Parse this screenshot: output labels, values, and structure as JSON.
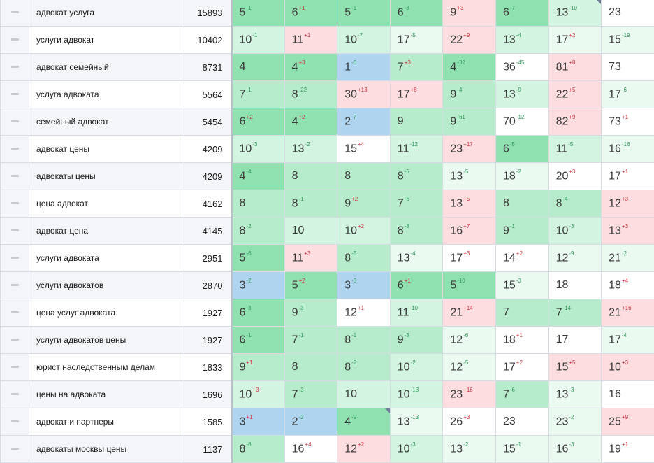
{
  "rows": [
    {
      "keyword": "адвокат услуга",
      "volume": "15893",
      "cells": [
        {
          "v": "5",
          "d": "1",
          "dir": "up",
          "c": "c1"
        },
        {
          "v": "6",
          "d": "1",
          "dir": "dn",
          "c": "c1"
        },
        {
          "v": "5",
          "d": "1",
          "dir": "up",
          "c": "c1"
        },
        {
          "v": "6",
          "d": "3",
          "dir": "up",
          "c": "c1"
        },
        {
          "v": "9",
          "d": "3",
          "dir": "dn",
          "c": "cr"
        },
        {
          "v": "6",
          "d": "7",
          "dir": "up",
          "c": "c1"
        },
        {
          "v": "13",
          "d": "10",
          "dir": "up",
          "c": "c3",
          "flag": true
        },
        {
          "v": "23",
          "d": "",
          "dir": "",
          "c": "c5"
        }
      ]
    },
    {
      "keyword": "услуги адвокат",
      "volume": "10402",
      "cells": [
        {
          "v": "10",
          "d": "1",
          "dir": "up",
          "c": "c3"
        },
        {
          "v": "11",
          "d": "1",
          "dir": "dn",
          "c": "cr"
        },
        {
          "v": "10",
          "d": "7",
          "dir": "up",
          "c": "c3"
        },
        {
          "v": "17",
          "d": "5",
          "dir": "up",
          "c": "c4"
        },
        {
          "v": "22",
          "d": "9",
          "dir": "dn",
          "c": "cr"
        },
        {
          "v": "13",
          "d": "4",
          "dir": "up",
          "c": "c3"
        },
        {
          "v": "17",
          "d": "2",
          "dir": "dn",
          "c": "c4"
        },
        {
          "v": "15",
          "d": "19",
          "dir": "up",
          "c": "c4"
        }
      ]
    },
    {
      "keyword": "адвокат семейный",
      "volume": "8731",
      "cells": [
        {
          "v": "4",
          "d": "",
          "dir": "",
          "c": "c1"
        },
        {
          "v": "4",
          "d": "3",
          "dir": "dn",
          "c": "c1"
        },
        {
          "v": "1",
          "d": "6",
          "dir": "up",
          "c": "cb"
        },
        {
          "v": "7",
          "d": "3",
          "dir": "dn",
          "c": "c2"
        },
        {
          "v": "4",
          "d": "32",
          "dir": "up",
          "c": "c1"
        },
        {
          "v": "36",
          "d": "45",
          "dir": "up",
          "c": "c5"
        },
        {
          "v": "81",
          "d": "8",
          "dir": "dn",
          "c": "cr"
        },
        {
          "v": "73",
          "d": "",
          "dir": "",
          "c": "c5"
        }
      ]
    },
    {
      "keyword": "услуга адвоката",
      "volume": "5564",
      "cells": [
        {
          "v": "7",
          "d": "1",
          "dir": "up",
          "c": "c2"
        },
        {
          "v": "8",
          "d": "22",
          "dir": "up",
          "c": "c2"
        },
        {
          "v": "30",
          "d": "13",
          "dir": "dn",
          "c": "cr"
        },
        {
          "v": "17",
          "d": "8",
          "dir": "dn",
          "c": "cr"
        },
        {
          "v": "9",
          "d": "4",
          "dir": "up",
          "c": "c2"
        },
        {
          "v": "13",
          "d": "9",
          "dir": "up",
          "c": "c3"
        },
        {
          "v": "22",
          "d": "5",
          "dir": "dn",
          "c": "cr"
        },
        {
          "v": "17",
          "d": "6",
          "dir": "up",
          "c": "c4"
        }
      ]
    },
    {
      "keyword": "семейный адвокат",
      "volume": "5454",
      "cells": [
        {
          "v": "6",
          "d": "2",
          "dir": "dn",
          "c": "c1"
        },
        {
          "v": "4",
          "d": "2",
          "dir": "dn",
          "c": "c1"
        },
        {
          "v": "2",
          "d": "7",
          "dir": "up",
          "c": "cb"
        },
        {
          "v": "9",
          "d": "",
          "dir": "",
          "c": "c2"
        },
        {
          "v": "9",
          "d": "61",
          "dir": "up",
          "c": "c2"
        },
        {
          "v": "70",
          "d": "12",
          "dir": "up",
          "c": "c5"
        },
        {
          "v": "82",
          "d": "9",
          "dir": "dn",
          "c": "cr"
        },
        {
          "v": "73",
          "d": "1",
          "dir": "dn",
          "c": "c5"
        }
      ]
    },
    {
      "keyword": "адвокат цены",
      "volume": "4209",
      "cells": [
        {
          "v": "10",
          "d": "3",
          "dir": "up",
          "c": "c3"
        },
        {
          "v": "13",
          "d": "2",
          "dir": "up",
          "c": "c3"
        },
        {
          "v": "15",
          "d": "4",
          "dir": "dn",
          "c": "c5"
        },
        {
          "v": "11",
          "d": "12",
          "dir": "up",
          "c": "c3"
        },
        {
          "v": "23",
          "d": "17",
          "dir": "dn",
          "c": "cr"
        },
        {
          "v": "6",
          "d": "5",
          "dir": "up",
          "c": "c1"
        },
        {
          "v": "11",
          "d": "5",
          "dir": "up",
          "c": "c3"
        },
        {
          "v": "16",
          "d": "16",
          "dir": "up",
          "c": "c4"
        }
      ]
    },
    {
      "keyword": "адвокаты цены",
      "volume": "4209",
      "cells": [
        {
          "v": "4",
          "d": "4",
          "dir": "up",
          "c": "c1"
        },
        {
          "v": "8",
          "d": "",
          "dir": "",
          "c": "c2"
        },
        {
          "v": "8",
          "d": "",
          "dir": "",
          "c": "c2"
        },
        {
          "v": "8",
          "d": "5",
          "dir": "up",
          "c": "c2"
        },
        {
          "v": "13",
          "d": "5",
          "dir": "up",
          "c": "c4"
        },
        {
          "v": "18",
          "d": "2",
          "dir": "up",
          "c": "c4"
        },
        {
          "v": "20",
          "d": "3",
          "dir": "dn",
          "c": "c5"
        },
        {
          "v": "17",
          "d": "1",
          "dir": "dn",
          "c": "c5"
        }
      ]
    },
    {
      "keyword": "цена адвокат",
      "volume": "4162",
      "cells": [
        {
          "v": "8",
          "d": "",
          "dir": "",
          "c": "c2"
        },
        {
          "v": "8",
          "d": "1",
          "dir": "up",
          "c": "c2"
        },
        {
          "v": "9",
          "d": "2",
          "dir": "dn",
          "c": "c2"
        },
        {
          "v": "7",
          "d": "6",
          "dir": "up",
          "c": "c2"
        },
        {
          "v": "13",
          "d": "5",
          "dir": "dn",
          "c": "cr"
        },
        {
          "v": "8",
          "d": "",
          "dir": "",
          "c": "c2"
        },
        {
          "v": "8",
          "d": "4",
          "dir": "up",
          "c": "c2"
        },
        {
          "v": "12",
          "d": "3",
          "dir": "dn",
          "c": "cr"
        }
      ]
    },
    {
      "keyword": "адвокат цена",
      "volume": "4145",
      "cells": [
        {
          "v": "8",
          "d": "2",
          "dir": "up",
          "c": "c2"
        },
        {
          "v": "10",
          "d": "",
          "dir": "",
          "c": "c3"
        },
        {
          "v": "10",
          "d": "2",
          "dir": "dn",
          "c": "c3"
        },
        {
          "v": "8",
          "d": "8",
          "dir": "up",
          "c": "c2"
        },
        {
          "v": "16",
          "d": "7",
          "dir": "dn",
          "c": "cr"
        },
        {
          "v": "9",
          "d": "1",
          "dir": "up",
          "c": "c2"
        },
        {
          "v": "10",
          "d": "3",
          "dir": "up",
          "c": "c3"
        },
        {
          "v": "13",
          "d": "3",
          "dir": "dn",
          "c": "cr"
        }
      ]
    },
    {
      "keyword": "услуги адвоката",
      "volume": "2951",
      "cells": [
        {
          "v": "5",
          "d": "6",
          "dir": "up",
          "c": "c1"
        },
        {
          "v": "11",
          "d": "3",
          "dir": "dn",
          "c": "cr"
        },
        {
          "v": "8",
          "d": "5",
          "dir": "up",
          "c": "c2"
        },
        {
          "v": "13",
          "d": "4",
          "dir": "up",
          "c": "c4"
        },
        {
          "v": "17",
          "d": "3",
          "dir": "dn",
          "c": "c5"
        },
        {
          "v": "14",
          "d": "2",
          "dir": "dn",
          "c": "c5"
        },
        {
          "v": "12",
          "d": "9",
          "dir": "up",
          "c": "c4"
        },
        {
          "v": "21",
          "d": "2",
          "dir": "up",
          "c": "c4"
        }
      ]
    },
    {
      "keyword": "услуги адвокатов",
      "volume": "2870",
      "cells": [
        {
          "v": "3",
          "d": "2",
          "dir": "up",
          "c": "cb"
        },
        {
          "v": "5",
          "d": "2",
          "dir": "dn",
          "c": "c1"
        },
        {
          "v": "3",
          "d": "3",
          "dir": "up",
          "c": "cb"
        },
        {
          "v": "6",
          "d": "1",
          "dir": "dn",
          "c": "c1"
        },
        {
          "v": "5",
          "d": "10",
          "dir": "up",
          "c": "c1"
        },
        {
          "v": "15",
          "d": "3",
          "dir": "up",
          "c": "c4"
        },
        {
          "v": "18",
          "d": "",
          "dir": "",
          "c": "c5"
        },
        {
          "v": "18",
          "d": "4",
          "dir": "dn",
          "c": "c5"
        }
      ]
    },
    {
      "keyword": "цена услуг адвоката",
      "volume": "1927",
      "cells": [
        {
          "v": "6",
          "d": "3",
          "dir": "up",
          "c": "c1"
        },
        {
          "v": "9",
          "d": "3",
          "dir": "up",
          "c": "c2"
        },
        {
          "v": "12",
          "d": "1",
          "dir": "dn",
          "c": "c5"
        },
        {
          "v": "11",
          "d": "10",
          "dir": "up",
          "c": "c3"
        },
        {
          "v": "21",
          "d": "14",
          "dir": "dn",
          "c": "cr"
        },
        {
          "v": "7",
          "d": "",
          "dir": "",
          "c": "c2"
        },
        {
          "v": "7",
          "d": "14",
          "dir": "up",
          "c": "c2"
        },
        {
          "v": "21",
          "d": "16",
          "dir": "dn",
          "c": "cr"
        }
      ]
    },
    {
      "keyword": "услуги адвокатов цены",
      "volume": "1927",
      "cells": [
        {
          "v": "6",
          "d": "1",
          "dir": "up",
          "c": "c1"
        },
        {
          "v": "7",
          "d": "1",
          "dir": "up",
          "c": "c2"
        },
        {
          "v": "8",
          "d": "1",
          "dir": "up",
          "c": "c2"
        },
        {
          "v": "9",
          "d": "3",
          "dir": "up",
          "c": "c2"
        },
        {
          "v": "12",
          "d": "6",
          "dir": "up",
          "c": "c4"
        },
        {
          "v": "18",
          "d": "1",
          "dir": "dn",
          "c": "c5"
        },
        {
          "v": "17",
          "d": "",
          "dir": "",
          "c": "c5"
        },
        {
          "v": "17",
          "d": "4",
          "dir": "up",
          "c": "c4"
        }
      ]
    },
    {
      "keyword": "юрист наследственным делам",
      "volume": "1833",
      "cells": [
        {
          "v": "9",
          "d": "1",
          "dir": "dn",
          "c": "c2"
        },
        {
          "v": "8",
          "d": "",
          "dir": "",
          "c": "c2"
        },
        {
          "v": "8",
          "d": "2",
          "dir": "up",
          "c": "c2"
        },
        {
          "v": "10",
          "d": "2",
          "dir": "up",
          "c": "c3"
        },
        {
          "v": "12",
          "d": "5",
          "dir": "up",
          "c": "c4"
        },
        {
          "v": "17",
          "d": "2",
          "dir": "dn",
          "c": "c5"
        },
        {
          "v": "15",
          "d": "5",
          "dir": "dn",
          "c": "cr"
        },
        {
          "v": "10",
          "d": "3",
          "dir": "dn",
          "c": "cr"
        }
      ]
    },
    {
      "keyword": "цены на адвоката",
      "volume": "1696",
      "cells": [
        {
          "v": "10",
          "d": "3",
          "dir": "dn",
          "c": "c3"
        },
        {
          "v": "7",
          "d": "3",
          "dir": "up",
          "c": "c2"
        },
        {
          "v": "10",
          "d": "",
          "dir": "",
          "c": "c3"
        },
        {
          "v": "10",
          "d": "13",
          "dir": "up",
          "c": "c3"
        },
        {
          "v": "23",
          "d": "16",
          "dir": "dn",
          "c": "cr"
        },
        {
          "v": "7",
          "d": "6",
          "dir": "up",
          "c": "c2"
        },
        {
          "v": "13",
          "d": "3",
          "dir": "up",
          "c": "c4"
        },
        {
          "v": "16",
          "d": "",
          "dir": "",
          "c": "c5"
        }
      ]
    },
    {
      "keyword": "адвокат и партнеры",
      "volume": "1585",
      "cells": [
        {
          "v": "3",
          "d": "1",
          "dir": "dn",
          "c": "cb"
        },
        {
          "v": "2",
          "d": "2",
          "dir": "up",
          "c": "cb"
        },
        {
          "v": "4",
          "d": "9",
          "dir": "up",
          "c": "c1",
          "flag": true
        },
        {
          "v": "13",
          "d": "13",
          "dir": "up",
          "c": "c4"
        },
        {
          "v": "26",
          "d": "3",
          "dir": "dn",
          "c": "c5"
        },
        {
          "v": "23",
          "d": "",
          "dir": "",
          "c": "c5"
        },
        {
          "v": "23",
          "d": "2",
          "dir": "up",
          "c": "c4"
        },
        {
          "v": "25",
          "d": "9",
          "dir": "dn",
          "c": "cr"
        }
      ]
    },
    {
      "keyword": "адвокаты москвы цены",
      "volume": "1137",
      "cells": [
        {
          "v": "8",
          "d": "8",
          "dir": "up",
          "c": "c2"
        },
        {
          "v": "16",
          "d": "4",
          "dir": "dn",
          "c": "c5"
        },
        {
          "v": "12",
          "d": "2",
          "dir": "dn",
          "c": "cr"
        },
        {
          "v": "10",
          "d": "3",
          "dir": "up",
          "c": "c3"
        },
        {
          "v": "13",
          "d": "2",
          "dir": "up",
          "c": "c4"
        },
        {
          "v": "15",
          "d": "1",
          "dir": "up",
          "c": "c4"
        },
        {
          "v": "16",
          "d": "3",
          "dir": "up",
          "c": "c4"
        },
        {
          "v": "19",
          "d": "1",
          "dir": "dn",
          "c": "c5"
        }
      ]
    }
  ],
  "colors": {
    "top3": "#aed4f0",
    "top4_7": "#8fe1b0",
    "top8_9": "#b6eccb",
    "top10_11": "#d2f4e0",
    "top12_20": "#ebfaf1",
    "worse": "#fddde0",
    "none": "#ffffff",
    "up": "#2f9a5a",
    "down": "#d0343f"
  },
  "icons": {
    "row_handle": "drag-handle-icon",
    "delta_up": "up-delta",
    "delta_down": "down-delta"
  }
}
